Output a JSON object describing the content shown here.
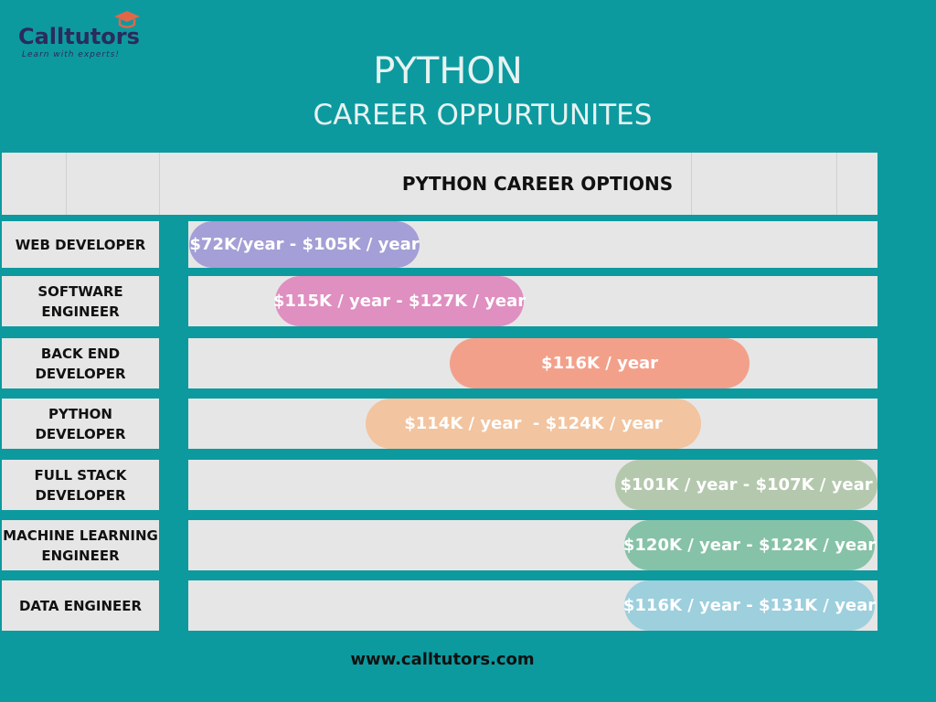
{
  "logo": {
    "name": "Calltutors",
    "tagline": "Learn with experts!"
  },
  "title": [
    "PYTHON",
    "CAREER OPPURTUNITES"
  ],
  "table": {
    "header": "PYTHON CAREER OPTIONS",
    "rows": [
      {
        "role": "WEB DEVELOPER",
        "salary": "$72K/year - $105K / year"
      },
      {
        "role": "SOFTWARE ENGINEER",
        "salary": "$115K / year - $127K / year"
      },
      {
        "role": "BACK END DEVELOPER",
        "salary": "$116K / year"
      },
      {
        "role": "PYTHON DEVELOPER",
        "salary": "$114K / year  - $124K / year"
      },
      {
        "role": "FULL STACK DEVELOPER",
        "salary": "$101K / year - $107K / year"
      },
      {
        "role": "MACHINE LEARNING ENGINEER",
        "salary": "$120K / year - $122K / year"
      },
      {
        "role": "DATA ENGINEER",
        "salary": "$116K / year - $131K / year"
      }
    ]
  },
  "footer": "www.calltutors.com"
}
